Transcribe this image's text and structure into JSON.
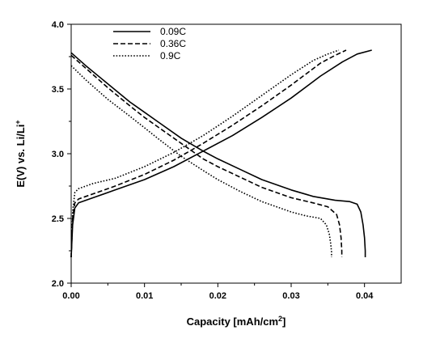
{
  "chart_data": {
    "type": "line",
    "title": "",
    "xlabel": "Capacity [mAh/cm",
    "xlabel_sup": "2",
    "xlabel_tail": "]",
    "ylabel": "E(V) vs. Li/Li",
    "ylabel_sup": "+",
    "xlim": [
      0.0,
      0.045
    ],
    "ylim": [
      2.0,
      4.0
    ],
    "xticks": [
      "0.00",
      "0.01",
      "0.02",
      "0.03",
      "0.04"
    ],
    "yticks": [
      "2.0",
      "2.5",
      "3.0",
      "3.5",
      "4.0"
    ],
    "grid": false,
    "legend_position": "top-left",
    "series": [
      {
        "name": "0.09C",
        "style": "solid",
        "curves": [
          {
            "kind": "discharge",
            "x": [
              0.0,
              0.002,
              0.005,
              0.008,
              0.01,
              0.012,
              0.015,
              0.018,
              0.02,
              0.023,
              0.026,
              0.03,
              0.033,
              0.036,
              0.038,
              0.039,
              0.0395,
              0.0398,
              0.04,
              0.0401,
              0.0401
            ],
            "y": [
              3.78,
              3.68,
              3.54,
              3.4,
              3.32,
              3.24,
              3.12,
              3.02,
              2.96,
              2.88,
              2.8,
              2.72,
              2.67,
              2.64,
              2.63,
              2.61,
              2.55,
              2.45,
              2.35,
              2.25,
              2.2
            ]
          },
          {
            "kind": "charge",
            "x": [
              0.0,
              0.0002,
              0.0005,
              0.001,
              0.003,
              0.006,
              0.01,
              0.014,
              0.018,
              0.022,
              0.026,
              0.03,
              0.034,
              0.037,
              0.039,
              0.041
            ],
            "y": [
              2.2,
              2.45,
              2.58,
              2.62,
              2.66,
              2.72,
              2.8,
              2.9,
              3.02,
              3.14,
              3.28,
              3.43,
              3.6,
              3.71,
              3.77,
              3.8
            ]
          }
        ]
      },
      {
        "name": "0.36C",
        "style": "dashed",
        "curves": [
          {
            "kind": "discharge",
            "x": [
              0.0,
              0.002,
              0.005,
              0.008,
              0.01,
              0.012,
              0.015,
              0.018,
              0.02,
              0.023,
              0.026,
              0.03,
              0.033,
              0.035,
              0.0362,
              0.0366,
              0.0368,
              0.0369,
              0.0369
            ],
            "y": [
              3.76,
              3.66,
              3.51,
              3.37,
              3.28,
              3.2,
              3.08,
              2.96,
              2.9,
              2.82,
              2.74,
              2.66,
              2.62,
              2.59,
              2.53,
              2.45,
              2.35,
              2.25,
              2.2
            ]
          },
          {
            "kind": "charge",
            "x": [
              0.0,
              0.0002,
              0.0005,
              0.001,
              0.003,
              0.006,
              0.01,
              0.014,
              0.018,
              0.022,
              0.026,
              0.03,
              0.034,
              0.036,
              0.0375
            ],
            "y": [
              2.2,
              2.5,
              2.62,
              2.65,
              2.69,
              2.75,
              2.84,
              2.95,
              3.08,
              3.22,
              3.37,
              3.53,
              3.7,
              3.76,
              3.8
            ]
          }
        ]
      },
      {
        "name": "0.9C",
        "style": "dotted",
        "curves": [
          {
            "kind": "discharge",
            "x": [
              0.0,
              0.002,
              0.005,
              0.008,
              0.01,
              0.012,
              0.015,
              0.018,
              0.02,
              0.023,
              0.026,
              0.03,
              0.032,
              0.034,
              0.0348,
              0.0352,
              0.0354,
              0.0355,
              0.0355
            ],
            "y": [
              3.68,
              3.57,
              3.42,
              3.29,
              3.2,
              3.11,
              2.98,
              2.87,
              2.8,
              2.71,
              2.63,
              2.55,
              2.52,
              2.5,
              2.45,
              2.38,
              2.3,
              2.24,
              2.2
            ]
          },
          {
            "kind": "charge",
            "x": [
              0.0,
              0.0002,
              0.0005,
              0.001,
              0.003,
              0.006,
              0.01,
              0.014,
              0.018,
              0.022,
              0.026,
              0.03,
              0.033,
              0.035,
              0.0365
            ],
            "y": [
              2.2,
              2.55,
              2.7,
              2.73,
              2.77,
              2.81,
              2.9,
              3.01,
              3.14,
              3.29,
              3.45,
              3.61,
              3.72,
              3.77,
              3.8
            ]
          }
        ]
      }
    ]
  }
}
